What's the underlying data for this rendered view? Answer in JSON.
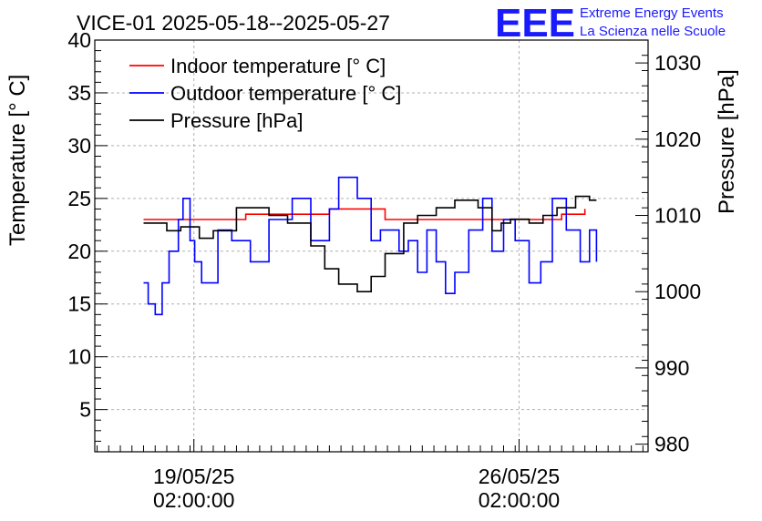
{
  "header": {
    "title": "VICE-01 2025-05-18--2025-05-27",
    "logo_text": "EEE",
    "org_line1": "Extreme Energy Events",
    "org_line2": "La Scienza nelle Scuole",
    "logo_color": "#1a1aff"
  },
  "chart_data": {
    "type": "line",
    "x_unit": "days since 2025-05-18 00:00",
    "ylabel_left": "Temperature [° C]",
    "ylabel_right": "Pressure [hPa]",
    "ylim_left": [
      1,
      40
    ],
    "ylim_right": [
      979,
      1033
    ],
    "yticks_left": [
      5,
      10,
      15,
      20,
      25,
      30,
      35,
      40
    ],
    "yticks_right": [
      980,
      990,
      1000,
      1010,
      1020,
      1030
    ],
    "xticks": [
      {
        "x": 1.083,
        "line1": "19/05/25",
        "line2": "02:00:00"
      },
      {
        "x": 8.083,
        "line1": "26/05/25",
        "line2": "02:00:00"
      }
    ],
    "xlim": [
      -1.05,
      10.86
    ],
    "grid": true,
    "legend_position": "top-left",
    "series": [
      {
        "name": "Indoor temperature [° C]",
        "axis": "left",
        "color": "#ff0000",
        "x": [
          0,
          0.6,
          1.5,
          2.2,
          4.0,
          5.0,
          5.2,
          7.8,
          8.5,
          8.8,
          9.0,
          9.5
        ],
        "values": [
          23,
          23,
          23,
          23.5,
          24,
          24,
          23,
          23,
          23,
          23,
          23.5,
          24
        ]
      },
      {
        "name": "Outdoor temperature [° C]",
        "axis": "left",
        "color": "#0000ff",
        "x": [
          0,
          0.1,
          0.25,
          0.4,
          0.55,
          0.75,
          0.85,
          1.0,
          1.1,
          1.25,
          1.4,
          1.6,
          1.9,
          2.3,
          2.7,
          3.2,
          3.6,
          4.0,
          4.2,
          4.6,
          4.9,
          5.1,
          5.35,
          5.5,
          5.7,
          5.9,
          6.1,
          6.3,
          6.5,
          6.7,
          7.0,
          7.3,
          7.5,
          7.75,
          8.0,
          8.3,
          8.55,
          8.8,
          9.1,
          9.4,
          9.6,
          9.75
        ],
        "values": [
          17,
          15,
          14,
          17,
          20,
          23,
          25,
          21,
          19,
          17,
          17,
          22,
          21,
          19,
          23,
          25,
          21,
          24,
          27,
          25,
          21,
          22,
          22,
          20,
          21,
          18,
          22,
          19,
          16,
          18,
          22,
          25,
          20,
          23,
          21,
          17,
          19,
          25,
          22,
          19,
          22,
          19
        ]
      },
      {
        "name": "Pressure [hPa]",
        "axis": "right",
        "color": "#000000",
        "x": [
          0,
          0.5,
          0.8,
          1.2,
          1.5,
          2.0,
          2.7,
          3.1,
          3.6,
          3.9,
          4.2,
          4.6,
          4.9,
          5.2,
          5.6,
          5.9,
          6.3,
          6.7,
          7.2,
          7.5,
          7.7,
          7.9,
          8.3,
          8.6,
          8.9,
          9.3,
          9.6,
          9.75
        ],
        "values": [
          1009,
          1008,
          1008.5,
          1007,
          1008,
          1011,
          1010,
          1009,
          1006,
          1003,
          1001,
          1000,
          1002,
          1005,
          1009,
          1010,
          1011,
          1012,
          1011,
          1008,
          1009,
          1009.5,
          1009,
          1010,
          1011,
          1012.5,
          1012,
          1012
        ]
      }
    ]
  }
}
